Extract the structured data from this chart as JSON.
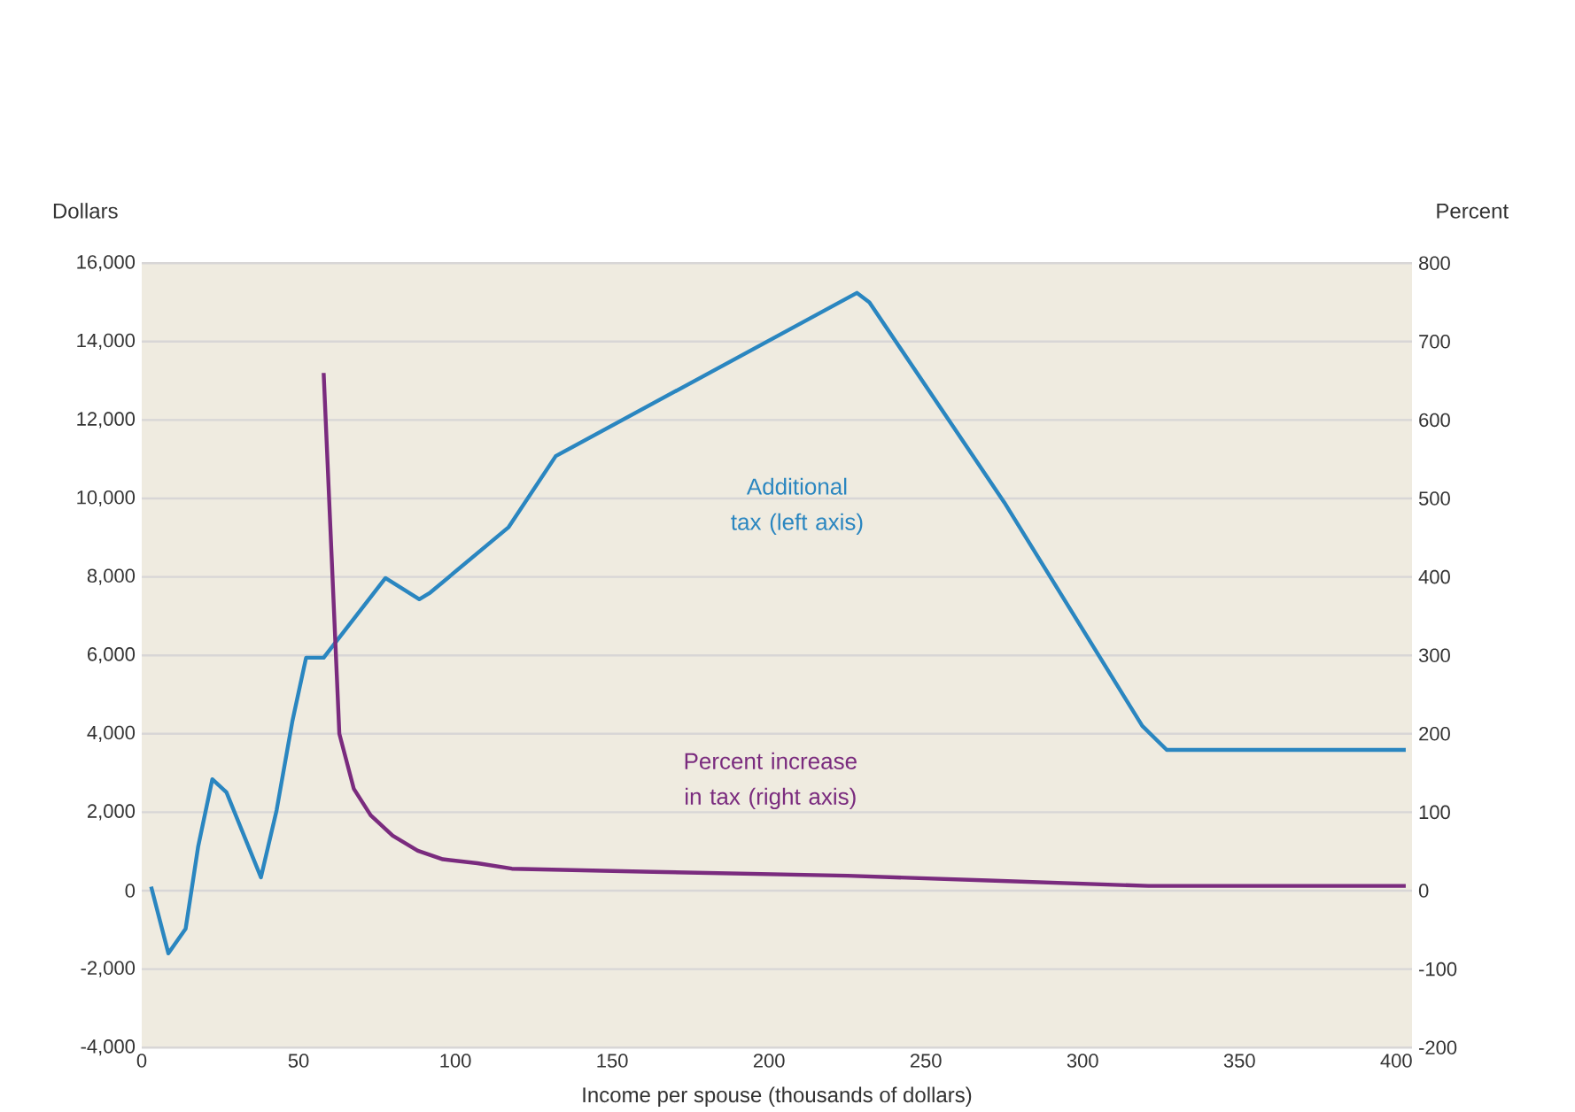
{
  "chart_data": {
    "type": "line",
    "xlabel": "Income per spouse (thousands of dollars)",
    "ylabel": "Dollars",
    "y2label": "Percent",
    "xlim": [
      0,
      405
    ],
    "xticks": [
      0,
      50,
      100,
      150,
      200,
      250,
      300,
      350,
      400
    ],
    "ylim": [
      -4000,
      16000
    ],
    "yticks": [
      {
        "value": -4000,
        "label": "-4,000"
      },
      {
        "value": -2000,
        "label": "-2,000"
      },
      0,
      {
        "value": 2000,
        "label": "2,000"
      },
      {
        "value": 4000,
        "label": "4,000"
      },
      {
        "value": 6000,
        "label": "6,000"
      },
      {
        "value": 8000,
        "label": "8,000"
      },
      {
        "value": 10000,
        "label": "10,000"
      },
      {
        "value": 12000,
        "label": "12,000"
      },
      {
        "value": 14000,
        "label": "14,000"
      },
      {
        "value": 16000,
        "label": "16,000"
      }
    ],
    "y2lim": [
      -200,
      800
    ],
    "y2ticks": [
      -200,
      -100,
      0,
      100,
      200,
      300,
      400,
      500,
      600,
      700,
      800
    ],
    "grid": "y",
    "series": [
      {
        "name": "Additional tax (left axis)",
        "color": "#2a86c0",
        "x": [
          3,
          8.5,
          14,
          18,
          22.5,
          27,
          38,
          43,
          48,
          52.4,
          58,
          77.7,
          88.5,
          92,
          117,
          132,
          228,
          232,
          275,
          319,
          326.8,
          403
        ],
        "values": [
          100,
          -1600,
          -970,
          1130,
          2840,
          2510,
          340,
          2050,
          4310,
          5940,
          5940,
          7970,
          7430,
          7600,
          9270,
          11080,
          15240,
          15000,
          9900,
          4200,
          3590,
          3590
        ]
      },
      {
        "name": "Percent increase in tax (right axis)",
        "color": "#7a2b7e",
        "axis": "y2",
        "x": [
          58,
          63,
          67.6,
          73,
          80,
          88,
          96,
          107,
          118,
          163,
          225,
          270,
          321,
          403
        ],
        "values": [
          660,
          200,
          130,
          96,
          70,
          51,
          40,
          35,
          28,
          24,
          19,
          13,
          6,
          6
        ]
      }
    ]
  }
}
